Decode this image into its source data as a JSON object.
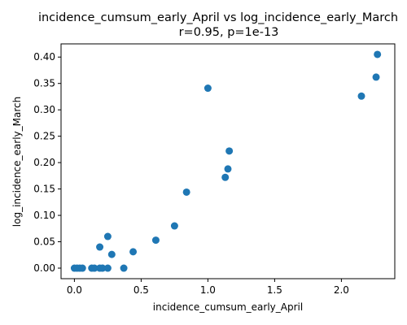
{
  "chart_data": {
    "type": "scatter",
    "title": "incidence_cumsum_early_April vs log_incidence_early_March",
    "subtitle": "r=0.95, p=1e-13",
    "xlabel": "incidence_cumsum_early_April",
    "ylabel": "log_incidence_early_March",
    "xlim": [
      -0.1,
      2.4
    ],
    "ylim": [
      -0.02,
      0.425
    ],
    "xticks": [
      0.0,
      0.5,
      1.0,
      1.5,
      2.0
    ],
    "xtick_labels": [
      "0.0",
      "0.5",
      "1.0",
      "1.5",
      "2.0"
    ],
    "yticks": [
      0.0,
      0.05,
      0.1,
      0.15,
      0.2,
      0.25,
      0.3,
      0.35,
      0.4
    ],
    "ytick_labels": [
      "0.00",
      "0.05",
      "0.10",
      "0.15",
      "0.20",
      "0.25",
      "0.30",
      "0.35",
      "0.40"
    ],
    "grid": false,
    "marker_color": "#1f77b4",
    "points": [
      {
        "x": 0.0,
        "y": 0.0
      },
      {
        "x": 0.02,
        "y": 0.0
      },
      {
        "x": 0.04,
        "y": 0.0
      },
      {
        "x": 0.06,
        "y": 0.0
      },
      {
        "x": 0.13,
        "y": 0.0
      },
      {
        "x": 0.15,
        "y": 0.0
      },
      {
        "x": 0.19,
        "y": 0.0
      },
      {
        "x": 0.21,
        "y": 0.0
      },
      {
        "x": 0.25,
        "y": 0.0
      },
      {
        "x": 0.37,
        "y": 0.0
      },
      {
        "x": 0.19,
        "y": 0.04
      },
      {
        "x": 0.25,
        "y": 0.06
      },
      {
        "x": 0.28,
        "y": 0.026
      },
      {
        "x": 0.44,
        "y": 0.031
      },
      {
        "x": 0.61,
        "y": 0.053
      },
      {
        "x": 0.75,
        "y": 0.08
      },
      {
        "x": 0.84,
        "y": 0.144
      },
      {
        "x": 1.0,
        "y": 0.341
      },
      {
        "x": 1.13,
        "y": 0.172
      },
      {
        "x": 1.15,
        "y": 0.188
      },
      {
        "x": 1.16,
        "y": 0.222
      },
      {
        "x": 2.15,
        "y": 0.326
      },
      {
        "x": 2.26,
        "y": 0.362
      },
      {
        "x": 2.27,
        "y": 0.405
      }
    ]
  }
}
